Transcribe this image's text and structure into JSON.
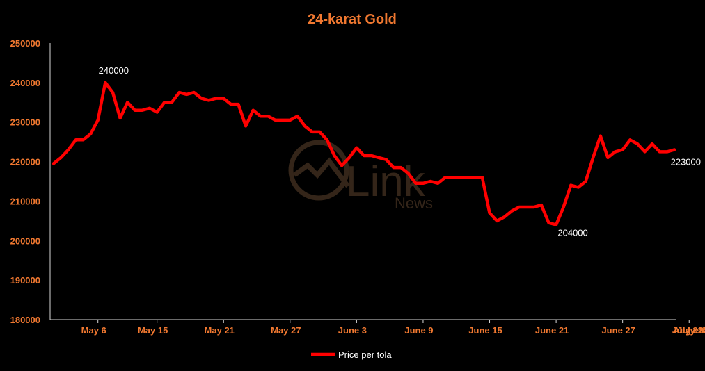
{
  "colors": {
    "background": "#000000",
    "line": "#FF0000",
    "title": "#F07830",
    "ticks": "#F07830",
    "axis": "#D9D9D9",
    "labels": "#FFFFFF"
  },
  "watermark": {
    "icon": "link-news-logo-icon",
    "brand": "Link",
    "sub": "News"
  },
  "chart_data": {
    "type": "line",
    "title": "24-karat Gold",
    "xlabel": "",
    "ylabel": "",
    "ylim": [
      180000,
      250000
    ],
    "yticks": [
      180000,
      190000,
      200000,
      210000,
      220000,
      230000,
      240000,
      250000
    ],
    "ytick_labels": [
      "180000",
      "190000",
      "200000",
      "210000",
      "220000",
      "230000",
      "240000",
      "250000"
    ],
    "grid": false,
    "legend": "bottom",
    "xtick_labels": [
      "May 6",
      "May 15",
      "May 21",
      "May 27",
      "June 3",
      "June 9",
      "June 15",
      "June 21",
      "June 27",
      "July 3",
      "July 10",
      "July 17",
      "July 24",
      "August 2"
    ],
    "xtick_positions": [
      6,
      14,
      23,
      32,
      41,
      50,
      59,
      68,
      77,
      86,
      95,
      104,
      113,
      122
    ],
    "series": [
      {
        "name": "Price per tola",
        "values": [
          219500,
          221000,
          223000,
          225500,
          225500,
          227000,
          230500,
          240000,
          237500,
          231000,
          235000,
          233000,
          233000,
          233500,
          232500,
          235000,
          235000,
          237500,
          237000,
          237500,
          236000,
          235500,
          236000,
          236000,
          234500,
          234500,
          229000,
          233000,
          231500,
          231500,
          230500,
          230500,
          230500,
          231500,
          229000,
          227500,
          227500,
          225500,
          221500,
          219000,
          221000,
          223500,
          221500,
          221500,
          221000,
          220500,
          218500,
          218500,
          217000,
          214500,
          214500,
          215000,
          214500,
          216000,
          216000,
          216000,
          216000,
          216000,
          216000,
          207000,
          205000,
          206000,
          207500,
          208500,
          208500,
          208500,
          209000,
          204500,
          204000,
          208500,
          214000,
          213500,
          215000,
          221000,
          226500,
          221000,
          222500,
          223000,
          225500,
          224500,
          222500,
          224500,
          222500,
          222500,
          223000
        ]
      }
    ],
    "annotations": [
      {
        "index": 7,
        "text": "240000"
      },
      {
        "index": 68,
        "text": "204000"
      },
      {
        "index": 84,
        "text": "223000"
      }
    ]
  }
}
